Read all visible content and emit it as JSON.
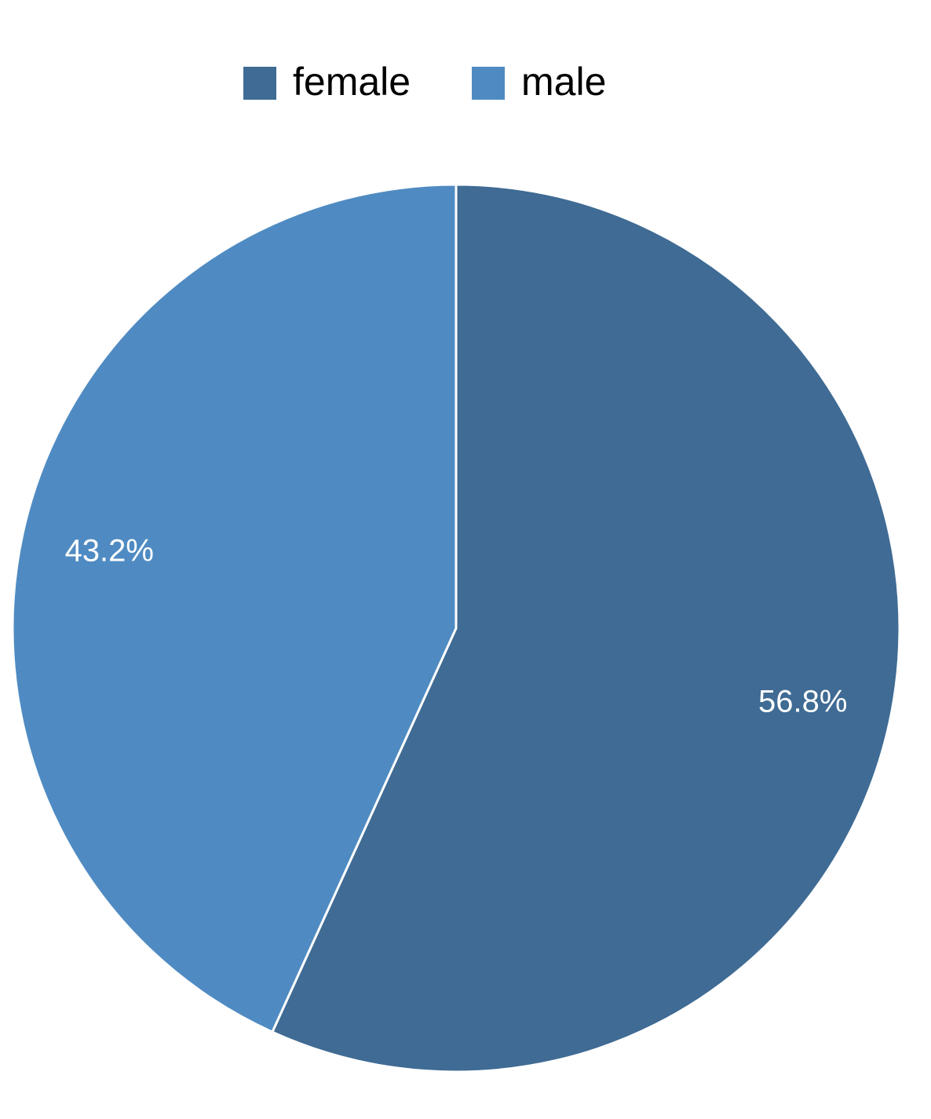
{
  "chart_data": {
    "type": "pie",
    "categories": [
      "female",
      "male"
    ],
    "values": [
      56.8,
      43.2
    ],
    "value_labels": [
      "56.8%",
      "43.2%"
    ],
    "colors": [
      "#3f6b94",
      "#4f8bc2"
    ],
    "legend": "top"
  }
}
